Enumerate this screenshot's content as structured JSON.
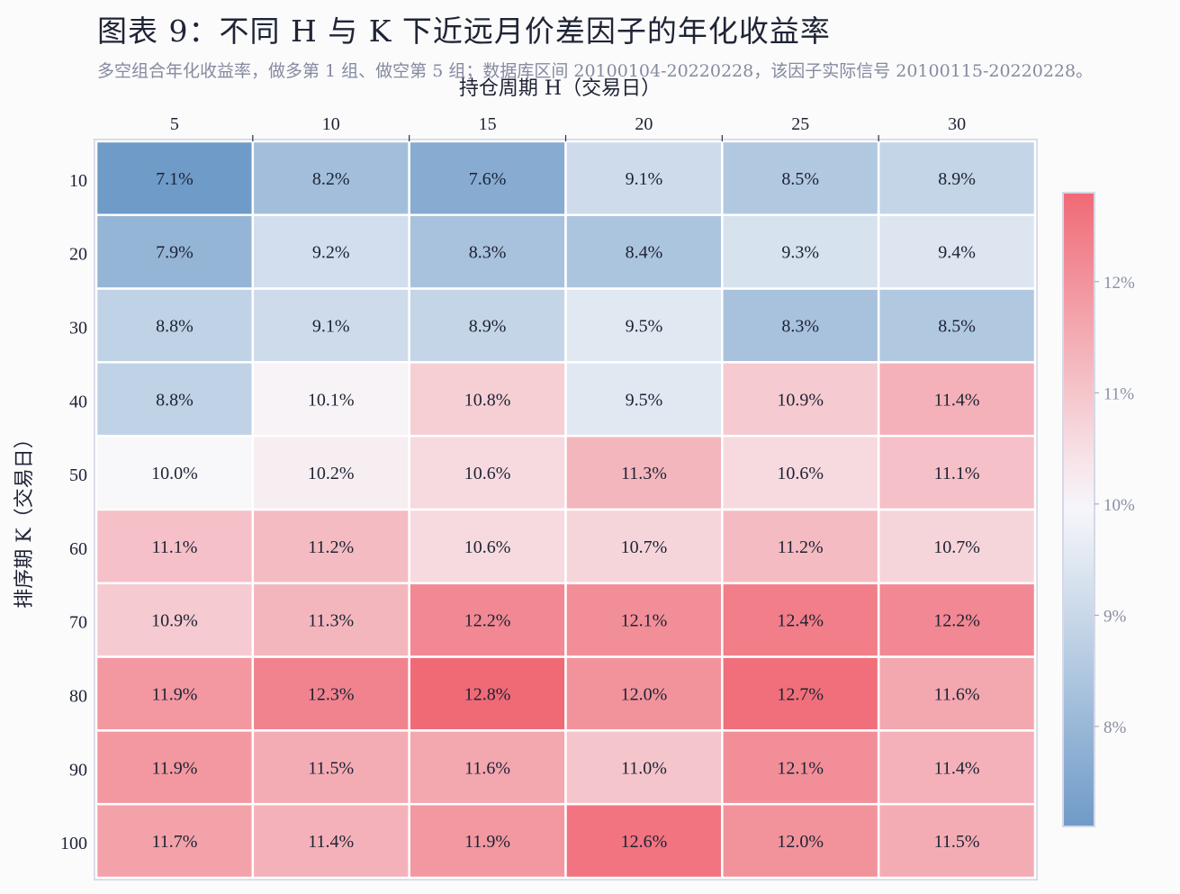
{
  "title": "图表 9：不同 H 与 K 下近远月价差因子的年化收益率",
  "subtitle": "多空组合年化收益率，做多第 1 组、做空第 5 组；数据库区间 20100104-20220228，该因子实际信号 20100115-20220228。",
  "colors": {
    "low": "#6f9bc8",
    "mid": "#f8f8fb",
    "high": "#f06a76",
    "cell_border": "#ffffff",
    "frame": "#d5d8e6"
  },
  "chart_data": {
    "type": "heatmap",
    "xlabel": "持仓周期 H（交易日）",
    "ylabel": "排序期 K（交易日）",
    "x_ticks": [
      "5",
      "10",
      "15",
      "20",
      "25",
      "30"
    ],
    "y_ticks": [
      "10",
      "20",
      "30",
      "40",
      "50",
      "60",
      "70",
      "80",
      "90",
      "100"
    ],
    "values": [
      [
        7.1,
        8.2,
        7.6,
        9.1,
        8.5,
        8.9
      ],
      [
        7.9,
        9.2,
        8.3,
        8.4,
        9.3,
        9.4
      ],
      [
        8.8,
        9.1,
        8.9,
        9.5,
        8.3,
        8.5
      ],
      [
        8.8,
        10.1,
        10.8,
        9.5,
        10.9,
        11.4
      ],
      [
        10.0,
        10.2,
        10.6,
        11.3,
        10.6,
        11.1
      ],
      [
        11.1,
        11.2,
        10.6,
        10.7,
        11.2,
        10.7
      ],
      [
        10.9,
        11.3,
        12.2,
        12.1,
        12.4,
        12.2
      ],
      [
        11.9,
        12.3,
        12.8,
        12.0,
        12.7,
        11.6
      ],
      [
        11.9,
        11.5,
        11.6,
        11.0,
        12.1,
        11.4
      ],
      [
        11.7,
        11.4,
        11.9,
        12.6,
        12.0,
        11.5
      ]
    ],
    "value_format": "percent_1dp",
    "x_axis_position": "top",
    "colorbar": {
      "min": 7.1,
      "max": 12.8,
      "center": 10.0,
      "ticks": [
        "8%",
        "9%",
        "10%",
        "11%",
        "12%"
      ],
      "tick_values": [
        8,
        9,
        10,
        11,
        12
      ],
      "position": "right"
    }
  }
}
